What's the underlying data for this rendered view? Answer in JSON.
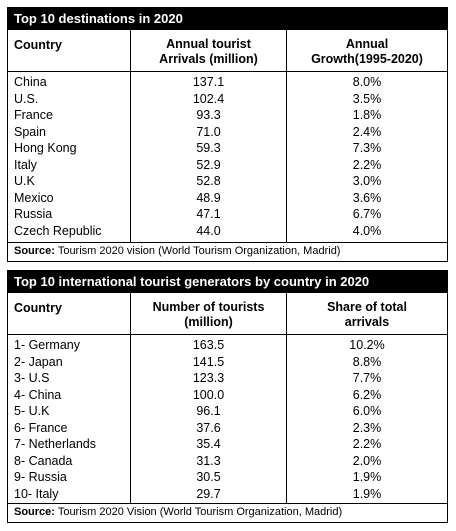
{
  "table1": {
    "title": "Top 10 destinations in 2020",
    "headers": {
      "col1": "Country",
      "col2_line1": "Annual tourist",
      "col2_line2": "Arrivals (million)",
      "col3_line1": "Annual",
      "col3_line2": "Growth(1995-2020)"
    },
    "rows": [
      {
        "country": "China",
        "arrivals": "137.1",
        "growth": "8.0%"
      },
      {
        "country": "U.S.",
        "arrivals": "102.4",
        "growth": "3.5%"
      },
      {
        "country": "France",
        "arrivals": "93.3",
        "growth": "1.8%"
      },
      {
        "country": "Spain",
        "arrivals": "71.0",
        "growth": "2.4%"
      },
      {
        "country": "Hong Kong",
        "arrivals": "59.3",
        "growth": "7.3%"
      },
      {
        "country": "Italy",
        "arrivals": "52.9",
        "growth": "2.2%"
      },
      {
        "country": "U.K",
        "arrivals": "52.8",
        "growth": "3.0%"
      },
      {
        "country": "Mexico",
        "arrivals": "48.9",
        "growth": "3.6%"
      },
      {
        "country": "Russia",
        "arrivals": "47.1",
        "growth": "6.7%"
      },
      {
        "country": "Czech Republic",
        "arrivals": "44.0",
        "growth": "4.0%"
      }
    ],
    "source_label": "Source:",
    "source_text": " Tourism 2020 vision (World Tourism Organization, Madrid)"
  },
  "table2": {
    "title": "Top 10 international tourist generators by country in 2020",
    "headers": {
      "col1": "Country",
      "col2_line1": "Number of tourists",
      "col2_line2": "(million)",
      "col3_line1": "Share of total",
      "col3_line2": "arrivals"
    },
    "rows": [
      {
        "country": "1- Germany",
        "tourists": "163.5",
        "share": "10.2%"
      },
      {
        "country": "2- Japan",
        "tourists": "141.5",
        "share": "8.8%"
      },
      {
        "country": "3- U.S",
        "tourists": "123.3",
        "share": "7.7%"
      },
      {
        "country": "4- China",
        "tourists": "100.0",
        "share": "6.2%"
      },
      {
        "country": "5- U.K",
        "tourists": "96.1",
        "share": "6.0%"
      },
      {
        "country": "6- France",
        "tourists": "37.6",
        "share": "2.3%"
      },
      {
        "country": "7- Netherlands",
        "tourists": "35.4",
        "share": "2.2%"
      },
      {
        "country": "8- Canada",
        "tourists": "31.3",
        "share": "2.0%"
      },
      {
        "country": "9- Russia",
        "tourists": "30.5",
        "share": "1.9%"
      },
      {
        "country": "10- Italy",
        "tourists": "29.7",
        "share": "1.9%"
      }
    ],
    "source_label": "Source:",
    "source_text": " Tourism 2020 Vision (World Tourism Organization, Madrid)"
  }
}
